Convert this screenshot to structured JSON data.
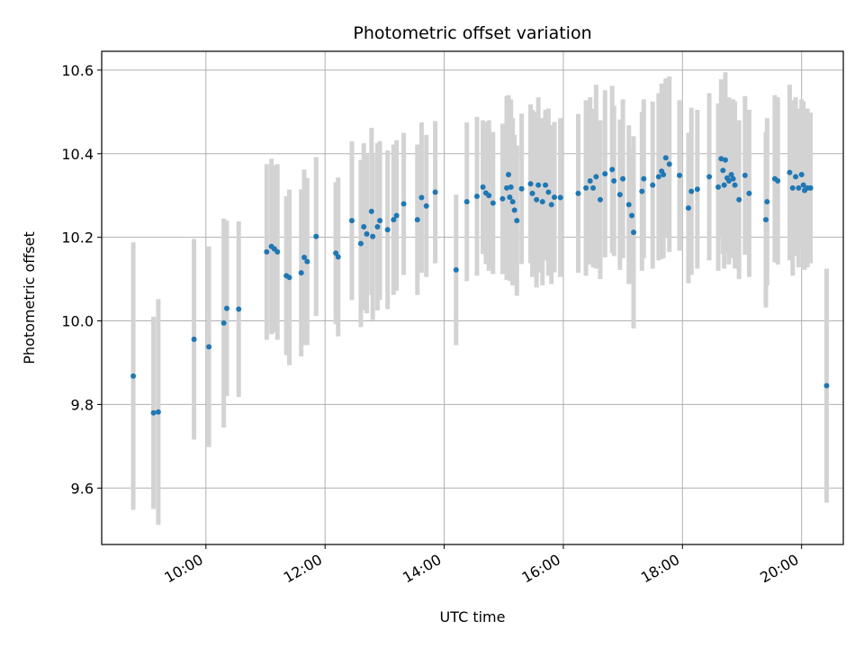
{
  "chart_data": {
    "type": "scatter",
    "title": "Photometric offset variation",
    "xlabel": "UTC time",
    "ylabel": "Photometric offset",
    "x_unit": "hours UTC",
    "xlim": [
      8.25,
      20.7
    ],
    "ylim": [
      9.465,
      10.645
    ],
    "grid": true,
    "x_ticks": [
      {
        "value": 10,
        "label": "10:00"
      },
      {
        "value": 12,
        "label": "12:00"
      },
      {
        "value": 14,
        "label": "14:00"
      },
      {
        "value": 16,
        "label": "16:00"
      },
      {
        "value": 18,
        "label": "18:00"
      },
      {
        "value": 20,
        "label": "20:00"
      }
    ],
    "y_ticks": [
      {
        "value": 9.6,
        "label": "9.6"
      },
      {
        "value": 9.8,
        "label": "9.8"
      },
      {
        "value": 10.0,
        "label": "10.0"
      },
      {
        "value": 10.2,
        "label": "10.2"
      },
      {
        "value": 10.4,
        "label": "10.4"
      },
      {
        "value": 10.6,
        "label": "10.6"
      }
    ],
    "colors": {
      "point": "#1f77b4",
      "errorbar": "#d3d3d3",
      "grid": "#b0b0b0"
    },
    "series": [
      {
        "points": [
          [
            8.78,
            9.868,
            0.32
          ],
          [
            9.12,
            9.78,
            0.23
          ],
          [
            9.2,
            9.782,
            0.27
          ],
          [
            9.8,
            9.956,
            0.24
          ],
          [
            10.05,
            9.938,
            0.24
          ],
          [
            10.3,
            9.995,
            0.25
          ],
          [
            10.35,
            10.03,
            0.21
          ],
          [
            10.55,
            10.028,
            0.21
          ],
          [
            11.02,
            10.165,
            0.21
          ],
          [
            11.1,
            10.178,
            0.21
          ],
          [
            11.15,
            10.172,
            0.2
          ],
          [
            11.2,
            10.165,
            0.21
          ],
          [
            11.35,
            10.108,
            0.19
          ],
          [
            11.4,
            10.104,
            0.21
          ],
          [
            11.6,
            10.115,
            0.2
          ],
          [
            11.65,
            10.152,
            0.21
          ],
          [
            11.7,
            10.142,
            0.2
          ],
          [
            11.85,
            10.202,
            0.19
          ],
          [
            12.18,
            10.162,
            0.17
          ],
          [
            12.22,
            10.153,
            0.19
          ],
          [
            12.45,
            10.24,
            0.19
          ],
          [
            12.6,
            10.185,
            0.2
          ],
          [
            12.65,
            10.225,
            0.2
          ],
          [
            12.7,
            10.208,
            0.19
          ],
          [
            12.78,
            10.262,
            0.2
          ],
          [
            12.8,
            10.202,
            0.2
          ],
          [
            12.88,
            10.225,
            0.2
          ],
          [
            12.92,
            10.24,
            0.19
          ],
          [
            13.05,
            10.218,
            0.19
          ],
          [
            13.15,
            10.242,
            0.18
          ],
          [
            13.2,
            10.252,
            0.18
          ],
          [
            13.32,
            10.28,
            0.17
          ],
          [
            13.55,
            10.242,
            0.18
          ],
          [
            13.62,
            10.295,
            0.18
          ],
          [
            13.7,
            10.275,
            0.17
          ],
          [
            13.85,
            10.308,
            0.17
          ],
          [
            14.2,
            10.122,
            0.18
          ],
          [
            14.38,
            10.285,
            0.19
          ],
          [
            14.55,
            10.298,
            0.19
          ],
          [
            14.65,
            10.32,
            0.16
          ],
          [
            14.7,
            10.306,
            0.17
          ],
          [
            14.75,
            10.3,
            0.18
          ],
          [
            14.82,
            10.282,
            0.17
          ],
          [
            14.98,
            10.292,
            0.18
          ],
          [
            15.05,
            10.318,
            0.22
          ],
          [
            15.08,
            10.35,
            0.19
          ],
          [
            15.1,
            10.296,
            0.2
          ],
          [
            15.12,
            10.32,
            0.21
          ],
          [
            15.15,
            10.285,
            0.2
          ],
          [
            15.18,
            10.265,
            0.18
          ],
          [
            15.22,
            10.24,
            0.18
          ],
          [
            15.3,
            10.316,
            0.18
          ],
          [
            15.45,
            10.328,
            0.19
          ],
          [
            15.48,
            10.305,
            0.2
          ],
          [
            15.55,
            10.29,
            0.21
          ],
          [
            15.58,
            10.325,
            0.21
          ],
          [
            15.65,
            10.285,
            0.2
          ],
          [
            15.7,
            10.325,
            0.18
          ],
          [
            15.75,
            10.308,
            0.2
          ],
          [
            15.8,
            10.278,
            0.19
          ],
          [
            15.85,
            10.296,
            0.18
          ],
          [
            15.95,
            10.295,
            0.19
          ],
          [
            16.25,
            10.305,
            0.19
          ],
          [
            16.38,
            10.318,
            0.21
          ],
          [
            16.45,
            10.335,
            0.2
          ],
          [
            16.5,
            10.318,
            0.19
          ],
          [
            16.55,
            10.345,
            0.22
          ],
          [
            16.62,
            10.29,
            0.19
          ],
          [
            16.7,
            10.352,
            0.2
          ],
          [
            16.82,
            10.362,
            0.2
          ],
          [
            16.85,
            10.335,
            0.18
          ],
          [
            16.95,
            10.302,
            0.18
          ],
          [
            17.0,
            10.34,
            0.19
          ],
          [
            17.1,
            10.278,
            0.19
          ],
          [
            17.15,
            10.252,
            0.16
          ],
          [
            17.18,
            10.212,
            0.23
          ],
          [
            17.32,
            10.31,
            0.19
          ],
          [
            17.35,
            10.34,
            0.19
          ],
          [
            17.5,
            10.325,
            0.2
          ],
          [
            17.6,
            10.345,
            0.2
          ],
          [
            17.65,
            10.358,
            0.21
          ],
          [
            17.68,
            10.35,
            0.2
          ],
          [
            17.72,
            10.39,
            0.19
          ],
          [
            17.78,
            10.375,
            0.21
          ],
          [
            17.95,
            10.348,
            0.18
          ],
          [
            18.1,
            10.27,
            0.18
          ],
          [
            18.15,
            10.31,
            0.2
          ],
          [
            18.25,
            10.315,
            0.19
          ],
          [
            18.45,
            10.345,
            0.2
          ],
          [
            18.6,
            10.32,
            0.2
          ],
          [
            18.65,
            10.388,
            0.19
          ],
          [
            18.68,
            10.36,
            0.2
          ],
          [
            18.7,
            10.325,
            0.2
          ],
          [
            18.72,
            10.385,
            0.21
          ],
          [
            18.75,
            10.342,
            0.18
          ],
          [
            18.78,
            10.335,
            0.2
          ],
          [
            18.82,
            10.35,
            0.18
          ],
          [
            18.85,
            10.34,
            0.19
          ],
          [
            18.88,
            10.325,
            0.2
          ],
          [
            18.95,
            10.29,
            0.19
          ],
          [
            19.05,
            10.348,
            0.19
          ],
          [
            19.12,
            10.305,
            0.2
          ],
          [
            19.4,
            10.242,
            0.21
          ],
          [
            19.42,
            10.285,
            0.2
          ],
          [
            19.55,
            10.34,
            0.2
          ],
          [
            19.6,
            10.335,
            0.2
          ],
          [
            19.8,
            10.355,
            0.21
          ],
          [
            19.85,
            10.318,
            0.21
          ],
          [
            19.9,
            10.345,
            0.19
          ],
          [
            19.95,
            10.318,
            0.19
          ],
          [
            20.0,
            10.35,
            0.18
          ],
          [
            20.03,
            10.325,
            0.2
          ],
          [
            20.05,
            10.312,
            0.19
          ],
          [
            20.1,
            10.318,
            0.19
          ],
          [
            20.15,
            10.318,
            0.18
          ],
          [
            20.42,
            9.845,
            0.28
          ]
        ]
      }
    ]
  }
}
